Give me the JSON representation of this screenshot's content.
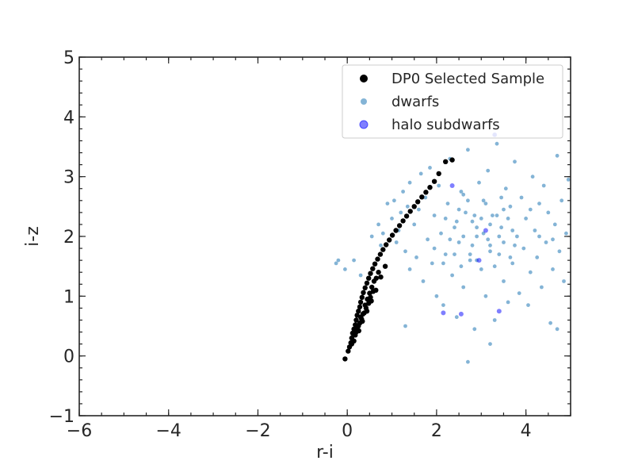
{
  "chart_data": {
    "type": "scatter",
    "title": "",
    "xlabel": "r-i",
    "ylabel": "i-z",
    "xlim": [
      -6,
      5
    ],
    "ylim": [
      -1,
      5
    ],
    "x_ticks": [
      -6,
      -4,
      -2,
      0,
      2,
      4
    ],
    "y_ticks": [
      -1,
      0,
      1,
      2,
      3,
      4,
      5
    ],
    "x_tick_labels": [
      "−6",
      "−4",
      "−2",
      "0",
      "2",
      "4"
    ],
    "y_tick_labels": [
      "−1",
      "0",
      "1",
      "2",
      "3",
      "4",
      "5"
    ],
    "grid": false,
    "legend": {
      "placement": "upper-right",
      "entries": [
        "DP0 Selected Sample",
        "dwarfs",
        "halo subdwarfs"
      ]
    },
    "series": [
      {
        "name": "dwarfs",
        "color": "#1f77b4",
        "alpha": 0.55,
        "points": [
          [
            -0.25,
            1.55
          ],
          [
            -0.2,
            1.6
          ],
          [
            -0.05,
            1.45
          ],
          [
            0.15,
            1.6
          ],
          [
            0.3,
            1.35
          ],
          [
            0.55,
            2.0
          ],
          [
            0.7,
            2.2
          ],
          [
            0.75,
            1.85
          ],
          [
            0.8,
            2.05
          ],
          [
            0.9,
            2.55
          ],
          [
            1.0,
            2.3
          ],
          [
            1.05,
            2.6
          ],
          [
            1.1,
            1.9
          ],
          [
            1.15,
            2.1
          ],
          [
            1.2,
            2.4
          ],
          [
            1.25,
            2.75
          ],
          [
            1.3,
            1.75
          ],
          [
            1.35,
            2.5
          ],
          [
            1.4,
            1.45
          ],
          [
            1.4,
            2.9
          ],
          [
            1.5,
            2.2
          ],
          [
            1.55,
            1.65
          ],
          [
            1.6,
            2.45
          ],
          [
            1.65,
            3.05
          ],
          [
            1.7,
            1.25
          ],
          [
            1.75,
            2.65
          ],
          [
            1.8,
            1.95
          ],
          [
            1.85,
            3.15
          ],
          [
            1.9,
            1.55
          ],
          [
            1.95,
            2.35
          ],
          [
            2.0,
            1.0
          ],
          [
            2.05,
            2.85
          ],
          [
            2.1,
            2.05
          ],
          [
            2.15,
            0.85
          ],
          [
            2.2,
            1.7
          ],
          [
            2.25,
            2.55
          ],
          [
            2.3,
            3.3
          ],
          [
            2.35,
            1.35
          ],
          [
            2.4,
            2.15
          ],
          [
            2.45,
            0.65
          ],
          [
            2.5,
            1.9
          ],
          [
            2.55,
            2.75
          ],
          [
            2.6,
            1.15
          ],
          [
            2.65,
            2.4
          ],
          [
            2.7,
            3.45
          ],
          [
            2.75,
            1.6
          ],
          [
            2.8,
            2.25
          ],
          [
            2.85,
            0.45
          ],
          [
            2.9,
            2.0
          ],
          [
            2.95,
            2.9
          ],
          [
            3.0,
            1.45
          ],
          [
            3.05,
            2.6
          ],
          [
            3.1,
            1.0
          ],
          [
            3.15,
            3.1
          ],
          [
            3.2,
            1.85
          ],
          [
            3.25,
            2.35
          ],
          [
            3.3,
            0.6
          ],
          [
            3.35,
            3.55
          ],
          [
            3.4,
            1.7
          ],
          [
            3.45,
            2.15
          ],
          [
            3.5,
            1.25
          ],
          [
            3.55,
            2.8
          ],
          [
            3.6,
            0.9
          ],
          [
            3.65,
            2.5
          ],
          [
            3.7,
            1.55
          ],
          [
            3.75,
            3.25
          ],
          [
            3.8,
            2.0
          ],
          [
            3.85,
            1.05
          ],
          [
            3.9,
            2.65
          ],
          [
            3.95,
            1.8
          ],
          [
            4.0,
            2.3
          ],
          [
            4.05,
            0.85
          ],
          [
            4.1,
            1.4
          ],
          [
            4.15,
            3.0
          ],
          [
            4.2,
            2.1
          ],
          [
            4.25,
            1.65
          ],
          [
            4.3,
            2.55
          ],
          [
            4.35,
            1.15
          ],
          [
            4.4,
            2.85
          ],
          [
            4.45,
            1.9
          ],
          [
            4.5,
            2.4
          ],
          [
            4.55,
            0.55
          ],
          [
            4.6,
            1.45
          ],
          [
            4.65,
            2.2
          ],
          [
            4.7,
            3.35
          ],
          [
            4.75,
            1.75
          ],
          [
            4.8,
            2.6
          ],
          [
            4.85,
            1.25
          ],
          [
            4.9,
            2.05
          ],
          [
            4.95,
            2.95
          ],
          [
            2.2,
            2.3
          ],
          [
            2.6,
            2.0
          ],
          [
            2.9,
            1.6
          ],
          [
            3.2,
            2.2
          ],
          [
            3.5,
            1.9
          ],
          [
            2.4,
            1.7
          ],
          [
            2.7,
            2.6
          ],
          [
            3.0,
            2.3
          ],
          [
            3.3,
            1.5
          ],
          [
            3.6,
            2.3
          ],
          [
            2.5,
            2.45
          ],
          [
            2.8,
            1.85
          ],
          [
            3.1,
            2.55
          ],
          [
            3.4,
            2.0
          ],
          [
            3.7,
            2.1
          ],
          [
            2.3,
            1.95
          ],
          [
            2.6,
            2.7
          ],
          [
            2.9,
            2.15
          ],
          [
            3.2,
            1.75
          ],
          [
            3.5,
            2.45
          ],
          [
            2.55,
            1.5
          ],
          [
            2.85,
            2.35
          ],
          [
            3.15,
            1.95
          ],
          [
            3.45,
            2.65
          ],
          [
            3.75,
            1.85
          ],
          [
            2.45,
            2.25
          ],
          [
            2.75,
            1.7
          ],
          [
            3.05,
            2.05
          ],
          [
            3.35,
            2.35
          ],
          [
            3.65,
            1.65
          ],
          [
            1.95,
            1.8
          ],
          [
            2.15,
            1.55
          ],
          [
            4.1,
            2.45
          ],
          [
            4.3,
            2.0
          ],
          [
            4.6,
            1.95
          ],
          [
            3.3,
            3.7
          ],
          [
            2.7,
            -0.1
          ],
          [
            3.2,
            0.2
          ],
          [
            1.3,
            0.5
          ],
          [
            4.7,
            0.45
          ]
        ]
      },
      {
        "name": "DP0 Selected Sample",
        "color": "#000000",
        "alpha": 1.0,
        "points": [
          [
            -0.05,
            -0.05
          ],
          [
            0.02,
            0.08
          ],
          [
            0.05,
            0.15
          ],
          [
            0.08,
            0.22
          ],
          [
            0.1,
            0.3
          ],
          [
            0.12,
            0.38
          ],
          [
            0.15,
            0.45
          ],
          [
            0.18,
            0.52
          ],
          [
            0.2,
            0.6
          ],
          [
            0.22,
            0.68
          ],
          [
            0.25,
            0.75
          ],
          [
            0.28,
            0.82
          ],
          [
            0.3,
            0.9
          ],
          [
            0.33,
            0.98
          ],
          [
            0.36,
            1.06
          ],
          [
            0.4,
            1.14
          ],
          [
            0.44,
            1.22
          ],
          [
            0.48,
            1.3
          ],
          [
            0.52,
            1.38
          ],
          [
            0.57,
            1.46
          ],
          [
            0.62,
            1.54
          ],
          [
            0.68,
            1.62
          ],
          [
            0.74,
            1.7
          ],
          [
            0.8,
            1.78
          ],
          [
            0.87,
            1.86
          ],
          [
            0.94,
            1.94
          ],
          [
            1.01,
            2.02
          ],
          [
            1.09,
            2.1
          ],
          [
            1.17,
            2.18
          ],
          [
            1.25,
            2.26
          ],
          [
            1.33,
            2.34
          ],
          [
            1.41,
            2.42
          ],
          [
            1.5,
            2.5
          ],
          [
            1.58,
            2.58
          ],
          [
            1.67,
            2.66
          ],
          [
            1.76,
            2.74
          ],
          [
            1.85,
            2.82
          ],
          [
            1.95,
            2.92
          ],
          [
            2.05,
            3.05
          ],
          [
            2.2,
            3.25
          ],
          [
            2.35,
            3.28
          ],
          [
            0.15,
            0.25
          ],
          [
            0.2,
            0.4
          ],
          [
            0.25,
            0.5
          ],
          [
            0.3,
            0.65
          ],
          [
            0.35,
            0.7
          ],
          [
            0.4,
            0.85
          ],
          [
            0.45,
            0.95
          ],
          [
            0.5,
            1.05
          ],
          [
            0.55,
            1.15
          ],
          [
            0.6,
            1.25
          ],
          [
            0.65,
            1.3
          ],
          [
            0.7,
            1.4
          ],
          [
            0.1,
            0.2
          ],
          [
            0.18,
            0.35
          ],
          [
            0.22,
            0.45
          ],
          [
            0.28,
            0.55
          ],
          [
            0.32,
            0.62
          ],
          [
            0.38,
            0.72
          ],
          [
            0.42,
            0.8
          ],
          [
            0.48,
            0.88
          ],
          [
            0.52,
            0.98
          ],
          [
            0.58,
            1.08
          ],
          [
            0.26,
            0.42
          ],
          [
            0.34,
            0.58
          ],
          [
            0.44,
            0.75
          ],
          [
            0.54,
            0.92
          ],
          [
            0.64,
            1.1
          ],
          [
            0.75,
            1.32
          ],
          [
            0.85,
            1.5
          ]
        ]
      },
      {
        "name": "halo subdwarfs",
        "color": "#0000ff",
        "alpha": 0.5,
        "points": [
          [
            2.35,
            2.85
          ],
          [
            3.3,
            3.7
          ],
          [
            3.1,
            2.1
          ],
          [
            2.95,
            1.6
          ],
          [
            2.55,
            0.7
          ],
          [
            2.15,
            0.72
          ],
          [
            3.4,
            0.75
          ]
        ]
      }
    ]
  }
}
